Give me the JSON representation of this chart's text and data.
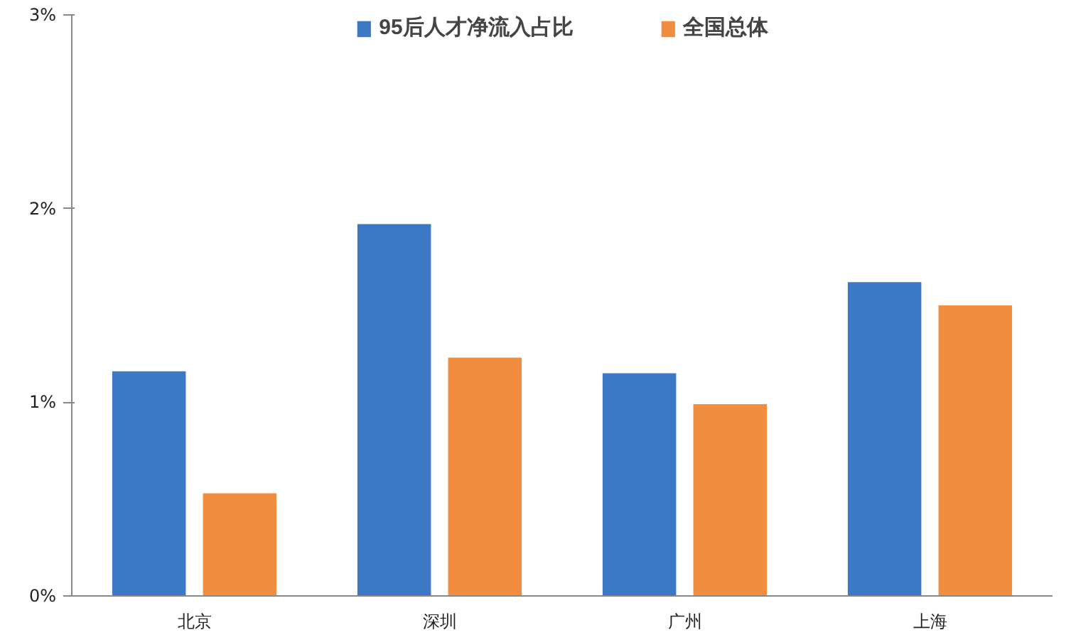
{
  "chart_data": {
    "type": "bar",
    "categories": [
      "北京",
      "深圳",
      "广州",
      "上海"
    ],
    "series": [
      {
        "name": "95后人才净流入占比",
        "color": "#3b78c6",
        "values": [
          1.16,
          1.92,
          1.15,
          1.62
        ]
      },
      {
        "name": "全国总体",
        "color": "#f28c3f",
        "values": [
          0.53,
          1.23,
          0.99,
          1.5
        ]
      }
    ],
    "ylim": [
      0,
      3
    ],
    "yticks": [
      {
        "value": 0,
        "label": "0%"
      },
      {
        "value": 1,
        "label": "1%"
      },
      {
        "value": 2,
        "label": "2%"
      },
      {
        "value": 3,
        "label": "3%"
      }
    ],
    "grid": false,
    "legend": "top"
  }
}
